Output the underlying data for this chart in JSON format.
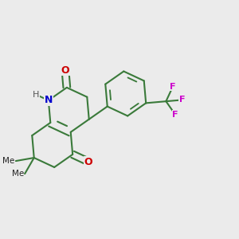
{
  "bg_color": "#ebebeb",
  "bond_color": "#3a7a3a",
  "bond_width": 1.5,
  "atom_colors": {
    "O": "#cc0000",
    "N": "#0000cc",
    "F": "#cc00cc",
    "H": "#555555"
  },
  "figsize": [
    3.0,
    3.0
  ],
  "dpi": 100,
  "font_size_atom": 9,
  "font_size_F": 8,
  "font_size_H": 8
}
